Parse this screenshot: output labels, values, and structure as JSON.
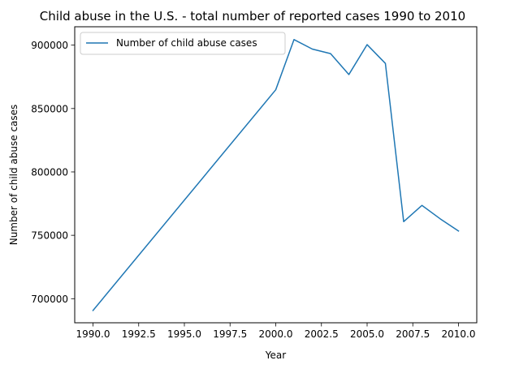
{
  "chart_data": {
    "type": "line",
    "title": "Child abuse in the U.S. - total number of reported cases 1990 to 2010",
    "xlabel": "Year",
    "ylabel": "Number of child abuse cases",
    "xlim": [
      1989.0,
      2011.0
    ],
    "ylim": [
      681000,
      914500
    ],
    "xticks": [
      1990.0,
      1992.5,
      1995.0,
      1997.5,
      2000.0,
      2002.5,
      2005.0,
      2007.5,
      2010.0
    ],
    "xtick_labels": [
      "1990.0",
      "1992.5",
      "1995.0",
      "1997.5",
      "2000.0",
      "2002.5",
      "2005.0",
      "2007.5",
      "2010.0"
    ],
    "yticks": [
      700000,
      750000,
      800000,
      850000,
      900000
    ],
    "ytick_labels": [
      "700000",
      "750000",
      "800000",
      "850000",
      "900000"
    ],
    "grid": false,
    "legend": "upper-left",
    "series": [
      {
        "name": "Number of child abuse cases",
        "color": "#1f77b4",
        "x": [
          1990,
          2000,
          2001,
          2002,
          2003,
          2004,
          2005,
          2006,
          2007,
          2008,
          2009,
          2010
        ],
        "y": [
          690700,
          864800,
          904400,
          896900,
          893300,
          876800,
          900400,
          885600,
          760800,
          773600,
          763000,
          753400
        ]
      }
    ]
  }
}
